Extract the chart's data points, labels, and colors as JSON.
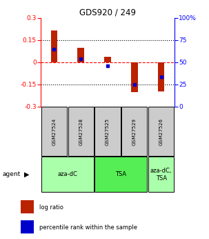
{
  "title": "GDS920 / 249",
  "categories": [
    "GSM27524",
    "GSM27528",
    "GSM27525",
    "GSM27529",
    "GSM27526"
  ],
  "log_ratios": [
    0.215,
    0.098,
    0.038,
    -0.203,
    -0.198
  ],
  "percentile_ranks": [
    65,
    54,
    46,
    25,
    33
  ],
  "ylim_left": [
    -0.3,
    0.3
  ],
  "ylim_right": [
    0,
    100
  ],
  "yticks_left": [
    -0.3,
    -0.15,
    0.0,
    0.15,
    0.3
  ],
  "yticks_right": [
    0,
    25,
    50,
    75,
    100
  ],
  "bar_color": "#bb2200",
  "marker_color": "#0000cc",
  "agent_defs": [
    {
      "label": "aza-dC",
      "cols": [
        0,
        1
      ],
      "color": "#aaffaa"
    },
    {
      "label": "TSA",
      "cols": [
        2,
        3
      ],
      "color": "#55ee55"
    },
    {
      "label": "aza-dC,\nTSA",
      "cols": [
        4,
        4
      ],
      "color": "#aaffaa"
    }
  ],
  "legend_log_ratio": "log ratio",
  "legend_percentile": "percentile rank within the sample",
  "sample_box_color": "#cccccc",
  "bar_width": 0.25
}
